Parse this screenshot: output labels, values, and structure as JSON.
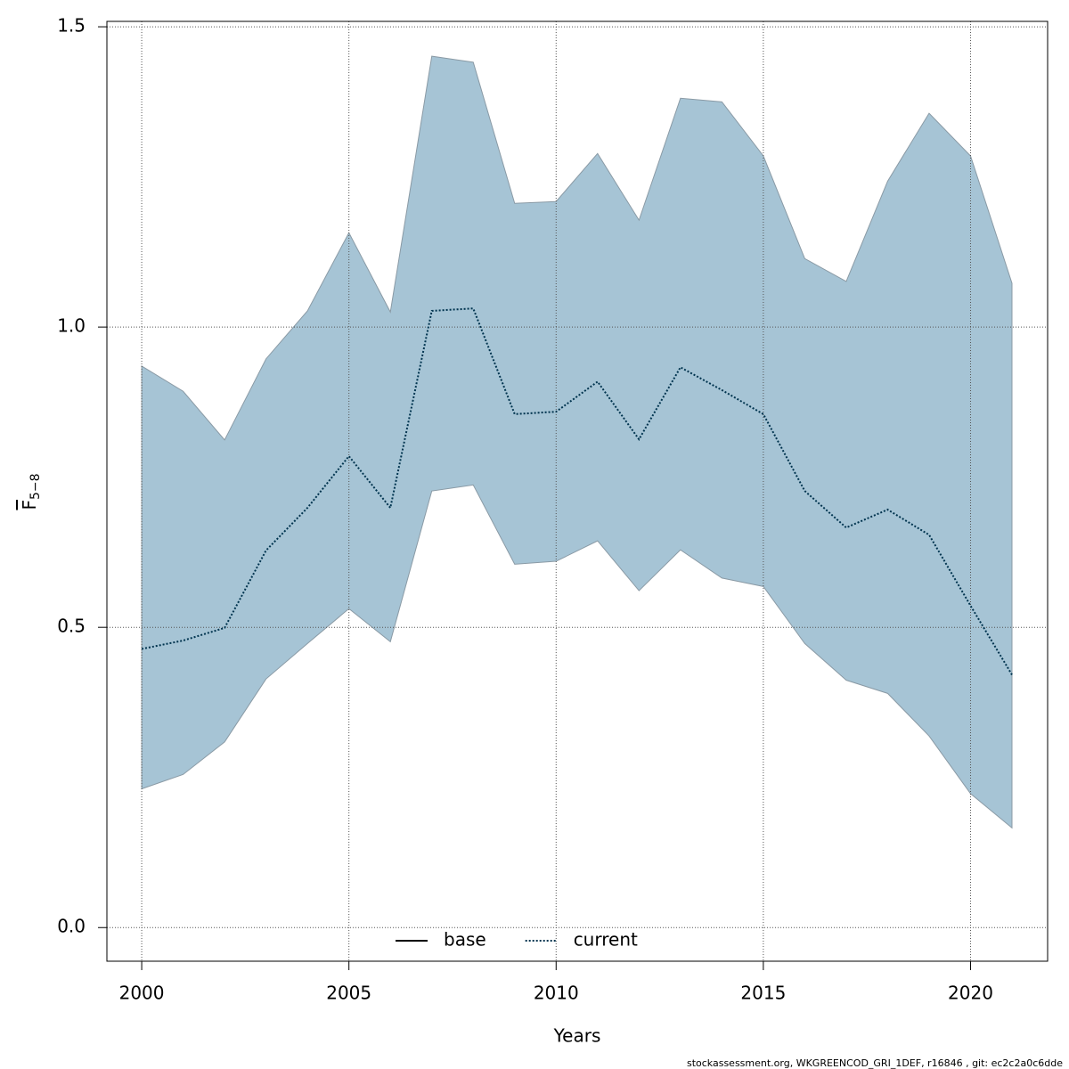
{
  "chart_data": {
    "type": "line",
    "x_label": "Years",
    "y_label": {
      "text": "F",
      "subscript": "5−8"
    },
    "footer": "stockassessment.org, WKGREENCOD_GRI_1DEF, r16846 , git: ec2c2a0c6dde",
    "x": [
      2000,
      2001,
      2002,
      2003,
      2004,
      2005,
      2006,
      2007,
      2008,
      2009,
      2010,
      2011,
      2012,
      2013,
      2014,
      2015,
      2016,
      2017,
      2018,
      2019,
      2020,
      2021
    ],
    "band": {
      "color": "#a6c4d5",
      "edge": "#8a9aa5",
      "upper": [
        0.935,
        0.893,
        0.812,
        0.947,
        1.027,
        1.157,
        1.025,
        1.451,
        1.441,
        1.206,
        1.209,
        1.289,
        1.178,
        1.381,
        1.375,
        1.285,
        1.114,
        1.076,
        1.243,
        1.356,
        1.285,
        1.073
      ],
      "lower": [
        0.231,
        0.255,
        0.309,
        0.414,
        0.473,
        0.531,
        0.476,
        0.727,
        0.737,
        0.605,
        0.61,
        0.644,
        0.561,
        0.629,
        0.582,
        0.568,
        0.473,
        0.412,
        0.39,
        0.319,
        0.223,
        0.166
      ]
    },
    "series": [
      {
        "name": "current",
        "color": "#00344f",
        "dash": "dotted",
        "values": [
          0.464,
          0.478,
          0.499,
          0.628,
          0.699,
          0.785,
          0.699,
          1.027,
          1.031,
          0.855,
          0.859,
          0.909,
          0.813,
          0.933,
          0.895,
          0.855,
          0.727,
          0.666,
          0.696,
          0.654,
          0.536,
          0.421
        ]
      }
    ],
    "legend": [
      {
        "name": "base",
        "color": "#000000",
        "dash": "solid"
      },
      {
        "name": "current",
        "color": "#00344f",
        "dash": "dotted"
      }
    ],
    "xlim": [
      1999.16,
      2021.86
    ],
    "ylim": [
      -0.056,
      1.509
    ],
    "xticks": [
      2000,
      2005,
      2010,
      2015,
      2020
    ],
    "yticks": [
      {
        "value": 0,
        "label": "0.0"
      },
      0.5,
      {
        "value": 1,
        "label": "1.0"
      },
      1.5
    ],
    "grid": true
  }
}
